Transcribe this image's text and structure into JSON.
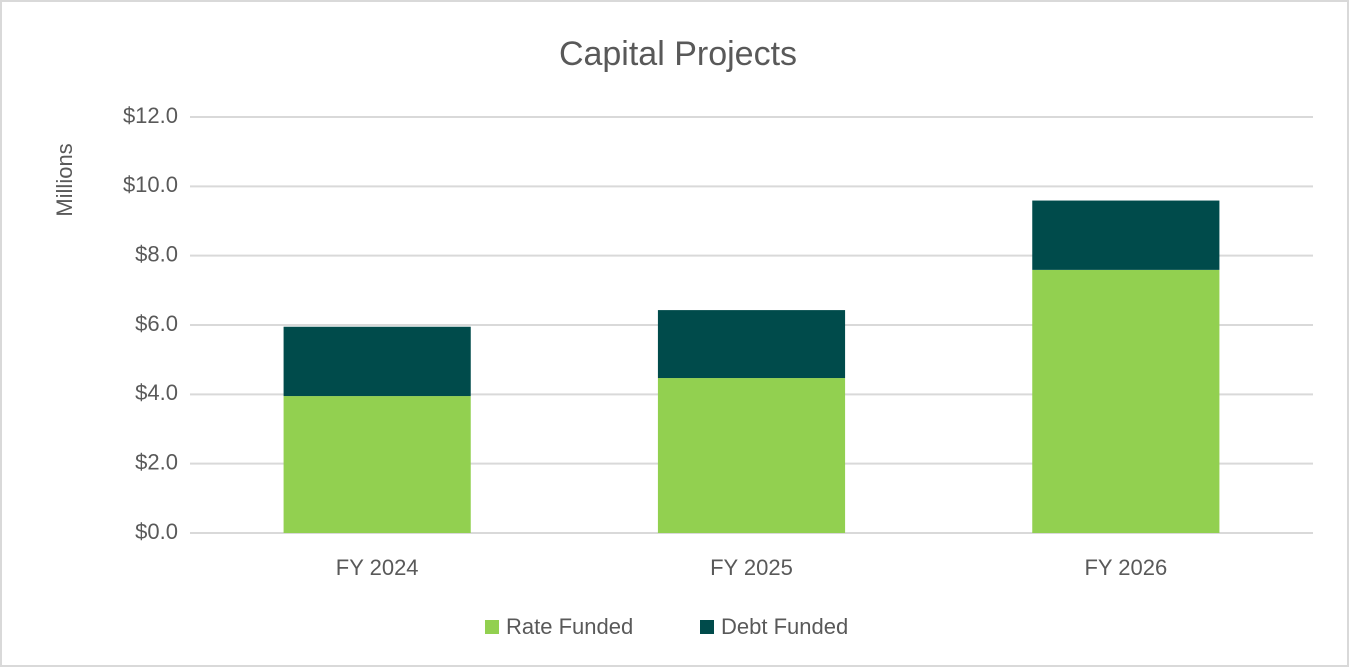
{
  "chart_data": {
    "type": "stacked_bar",
    "title": "Capital Projects",
    "y_label": "Millions",
    "categories": [
      "FY 2024",
      "FY 2025",
      "FY 2026"
    ],
    "series": [
      {
        "name": "Rate Funded",
        "color": "#92d050",
        "values": [
          3.95,
          4.47,
          7.59
        ]
      },
      {
        "name": "Debt Funded",
        "color": "#004b4b",
        "values": [
          2.0,
          1.96,
          2.0
        ]
      }
    ],
    "ylim": [
      0,
      12
    ],
    "yticks": [
      {
        "value": 0,
        "label": "$0.0"
      },
      {
        "value": 2,
        "label": "$2.0"
      },
      {
        "value": 4,
        "label": "$4.0"
      },
      {
        "value": 6,
        "label": "$6.0"
      },
      {
        "value": 8,
        "label": "$8.0"
      },
      {
        "value": 10,
        "label": "$10.0"
      },
      {
        "value": 12,
        "label": "$12.0"
      }
    ],
    "grid": true,
    "legend": "bottom"
  }
}
